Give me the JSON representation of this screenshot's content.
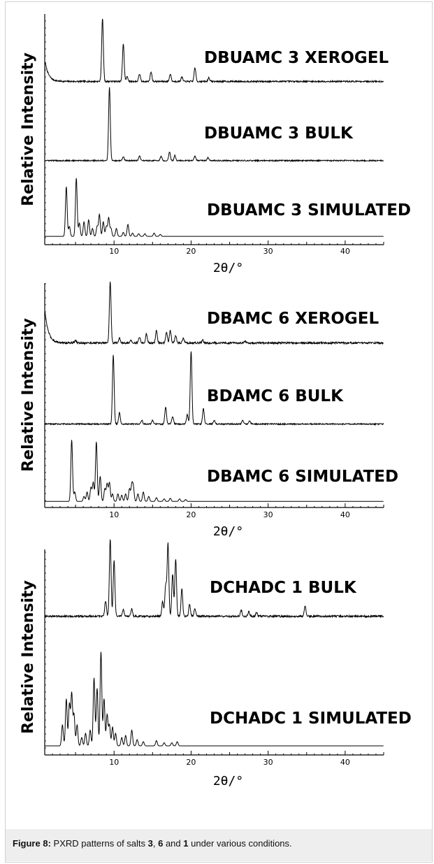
{
  "caption": {
    "label": "Figure 8:",
    "pre": " PXRD patterns of salts ",
    "n1": "3",
    "sep1": ", ",
    "n2": "6",
    "sep2": " and ",
    "n3": "1",
    "post": " under various conditions."
  },
  "chart_data": [
    {
      "type": "line",
      "xlabel": "2θ/°",
      "ylabel": "Relative Intensity",
      "xlim": [
        1,
        45
      ],
      "xticks": [
        10,
        20,
        30,
        40
      ],
      "series": [
        {
          "name": "DBUAMC 3 XEROGEL",
          "baseline": 0.05,
          "noise": 0.012,
          "decay": 0.35,
          "peaks": [
            [
              8.5,
              1.0
            ],
            [
              11.2,
              0.6
            ],
            [
              11.7,
              0.08
            ],
            [
              13.3,
              0.12
            ],
            [
              14.8,
              0.15
            ],
            [
              17.3,
              0.12
            ],
            [
              18.8,
              0.07
            ],
            [
              20.5,
              0.22
            ],
            [
              22.3,
              0.06
            ]
          ]
        },
        {
          "name": "DBUAMC 3 BULK",
          "baseline": 0.05,
          "noise": 0.008,
          "decay": 0,
          "peaks": [
            [
              9.4,
              1.0
            ],
            [
              11.2,
              0.05
            ],
            [
              13.3,
              0.06
            ],
            [
              16.1,
              0.06
            ],
            [
              17.2,
              0.12
            ],
            [
              17.9,
              0.07
            ],
            [
              20.5,
              0.06
            ],
            [
              22.2,
              0.04
            ]
          ]
        },
        {
          "name": "DBUAMC 3 SIMULATED",
          "baseline": 0.03,
          "noise": 0.0,
          "decay": 0,
          "peaks": [
            [
              3.8,
              0.75
            ],
            [
              4.2,
              0.15
            ],
            [
              5.1,
              0.88
            ],
            [
              5.5,
              0.2
            ],
            [
              6.1,
              0.22
            ],
            [
              6.7,
              0.25
            ],
            [
              7.2,
              0.12
            ],
            [
              7.8,
              0.15
            ],
            [
              8.1,
              0.33
            ],
            [
              8.6,
              0.22
            ],
            [
              9.0,
              0.15
            ],
            [
              9.3,
              0.28
            ],
            [
              9.6,
              0.12
            ],
            [
              10.3,
              0.12
            ],
            [
              11.2,
              0.06
            ],
            [
              11.8,
              0.18
            ],
            [
              12.4,
              0.05
            ],
            [
              13.2,
              0.04
            ],
            [
              14.0,
              0.04
            ],
            [
              15.2,
              0.05
            ],
            [
              16.0,
              0.03
            ]
          ]
        }
      ]
    },
    {
      "type": "line",
      "xlabel": "2θ/°",
      "ylabel": "Relative Intensity",
      "xlim": [
        1,
        45
      ],
      "xticks": [
        10,
        20,
        30,
        40
      ],
      "series": [
        {
          "name": "DBAMC 6 XEROGEL",
          "baseline": 0.05,
          "noise": 0.015,
          "decay": 0.55,
          "peaks": [
            [
              5.0,
              0.04
            ],
            [
              9.5,
              1.0
            ],
            [
              10.7,
              0.08
            ],
            [
              12.2,
              0.05
            ],
            [
              13.3,
              0.1
            ],
            [
              14.2,
              0.15
            ],
            [
              15.5,
              0.2
            ],
            [
              16.8,
              0.18
            ],
            [
              17.3,
              0.2
            ],
            [
              18.0,
              0.12
            ],
            [
              19.0,
              0.08
            ],
            [
              21.5,
              0.05
            ],
            [
              27.0,
              0.03
            ]
          ]
        },
        {
          "name": "BDAMC 6 BULK",
          "baseline": 0.04,
          "noise": 0.008,
          "decay": 0,
          "peaks": [
            [
              9.9,
              0.9
            ],
            [
              10.7,
              0.15
            ],
            [
              13.6,
              0.05
            ],
            [
              15.0,
              0.05
            ],
            [
              16.7,
              0.22
            ],
            [
              17.6,
              0.1
            ],
            [
              19.5,
              0.12
            ],
            [
              20.0,
              0.95
            ],
            [
              21.6,
              0.2
            ],
            [
              23.0,
              0.05
            ],
            [
              26.7,
              0.05
            ],
            [
              27.6,
              0.04
            ]
          ]
        },
        {
          "name": "DBAMC 6 SIMULATED",
          "baseline": 0.03,
          "noise": 0.0,
          "decay": 0,
          "peaks": [
            [
              4.5,
              0.98
            ],
            [
              4.9,
              0.15
            ],
            [
              6.1,
              0.08
            ],
            [
              6.5,
              0.15
            ],
            [
              7.0,
              0.22
            ],
            [
              7.3,
              0.3
            ],
            [
              7.7,
              0.95
            ],
            [
              8.2,
              0.4
            ],
            [
              8.8,
              0.2
            ],
            [
              9.1,
              0.28
            ],
            [
              9.4,
              0.3
            ],
            [
              9.8,
              0.12
            ],
            [
              10.5,
              0.12
            ],
            [
              11.0,
              0.1
            ],
            [
              11.5,
              0.12
            ],
            [
              12.0,
              0.2
            ],
            [
              12.3,
              0.25
            ],
            [
              12.5,
              0.22
            ],
            [
              13.1,
              0.12
            ],
            [
              13.8,
              0.15
            ],
            [
              14.5,
              0.08
            ],
            [
              15.5,
              0.06
            ],
            [
              16.5,
              0.04
            ],
            [
              17.3,
              0.05
            ],
            [
              18.5,
              0.04
            ],
            [
              19.3,
              0.03
            ]
          ]
        }
      ]
    },
    {
      "type": "line",
      "xlabel": "2θ/°",
      "ylabel": "Relative Intensity",
      "xlim": [
        1,
        45
      ],
      "xticks": [
        10,
        20,
        30,
        40
      ],
      "series": [
        {
          "name": "DCHADC 1 BULK",
          "baseline": 0.04,
          "noise": 0.012,
          "decay": 0,
          "peaks": [
            [
              8.9,
              0.2
            ],
            [
              9.5,
              1.0
            ],
            [
              10.0,
              0.72
            ],
            [
              11.2,
              0.08
            ],
            [
              12.3,
              0.1
            ],
            [
              16.3,
              0.2
            ],
            [
              16.7,
              0.4
            ],
            [
              17.0,
              0.95
            ],
            [
              17.6,
              0.55
            ],
            [
              18.0,
              0.75
            ],
            [
              18.8,
              0.35
            ],
            [
              19.8,
              0.15
            ],
            [
              20.5,
              0.1
            ],
            [
              26.5,
              0.08
            ],
            [
              27.5,
              0.06
            ],
            [
              28.5,
              0.05
            ],
            [
              34.8,
              0.14
            ]
          ]
        },
        {
          "name": "DCHADC 1 SIMULATED",
          "baseline": 0.02,
          "noise": 0.0,
          "decay": 0,
          "peaks": [
            [
              3.3,
              0.2
            ],
            [
              3.8,
              0.45
            ],
            [
              4.2,
              0.4
            ],
            [
              4.5,
              0.5
            ],
            [
              4.8,
              0.3
            ],
            [
              5.2,
              0.2
            ],
            [
              5.8,
              0.08
            ],
            [
              6.3,
              0.12
            ],
            [
              6.9,
              0.15
            ],
            [
              7.4,
              0.65
            ],
            [
              7.8,
              0.55
            ],
            [
              8.3,
              0.9
            ],
            [
              8.7,
              0.45
            ],
            [
              9.1,
              0.3
            ],
            [
              9.4,
              0.2
            ],
            [
              9.8,
              0.18
            ],
            [
              10.2,
              0.12
            ],
            [
              11.0,
              0.08
            ],
            [
              11.5,
              0.1
            ],
            [
              12.3,
              0.15
            ],
            [
              13.0,
              0.06
            ],
            [
              13.8,
              0.04
            ],
            [
              15.5,
              0.05
            ],
            [
              16.5,
              0.03
            ],
            [
              17.5,
              0.03
            ],
            [
              18.2,
              0.04
            ]
          ]
        }
      ]
    }
  ]
}
